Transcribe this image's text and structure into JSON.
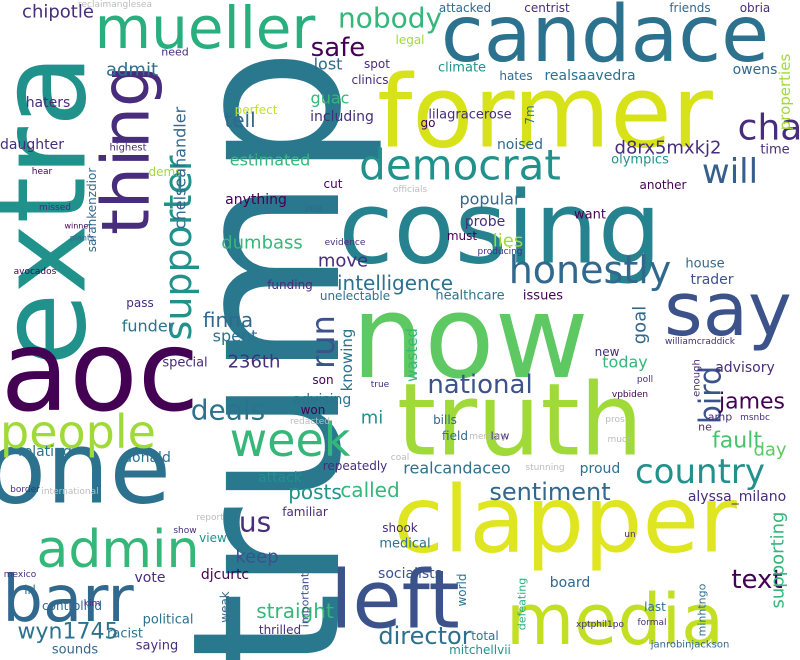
{
  "words": [
    "trump",
    "extra",
    "aoc",
    "one",
    "barr",
    "admin",
    "people",
    "cosing",
    "now",
    "truth",
    "clapper",
    "former",
    "candace",
    "mueller",
    "thing",
    "say",
    "left",
    "media",
    "week",
    "democrat",
    "honestly",
    "supporter",
    "country",
    "cha",
    "will",
    "nobody",
    "safe",
    "us",
    "deals",
    "national",
    "sentiment",
    "director",
    "wyn1745",
    "text",
    "intelligence",
    "run",
    "bird",
    "james",
    "fault",
    "straight",
    "posts",
    "called",
    "keep",
    "finna",
    "move",
    "lies",
    "popular",
    "tell",
    "admit",
    "chipotle",
    "lost",
    "guac",
    "including",
    "estimated",
    "anything",
    "dumbass",
    "funder",
    "spent",
    "236th",
    "special",
    "goal",
    "today",
    "d8rx5mxkj2",
    "realcandaceo",
    "mi",
    "advising",
    "wasted",
    "knowing",
    "alyssa_milano",
    "day",
    "supporting",
    "realsaavedra",
    "climate",
    "lilagracerose",
    "noised",
    "olympics",
    "time",
    "properties",
    "owens",
    "house",
    "trader",
    "advisory",
    "probe",
    "want",
    "must",
    "healthcare",
    "issues",
    "funding",
    "unelectable",
    "pass",
    "haters",
    "daughter",
    "relating",
    "donald",
    "attack",
    "repeatedly",
    "proud",
    "medical",
    "shook",
    "socialists",
    "vote",
    "djcurtc",
    "racist",
    "political",
    "saying",
    "sounds",
    "mitchellvii",
    "thrilled",
    "board",
    "last",
    "total",
    "world",
    "field",
    "law",
    "bills",
    "son",
    "won",
    "familiar",
    "view",
    "weak",
    "controlled",
    "irl",
    "important",
    "defeating",
    "minhtngo",
    "janrobinjackson",
    "friends",
    "centrist",
    "attacked",
    "obria",
    "legal",
    "spot",
    "hates",
    "go",
    "cut",
    "7m",
    "another",
    "new",
    "poll",
    "clinics",
    "perfect",
    "dems",
    "highest",
    "hear",
    "missed",
    "winner",
    "plants",
    "avocados",
    "jong",
    "evidence",
    "officials",
    "producing",
    "williamcraddick",
    "enough",
    "vpbiden",
    "msnbc",
    "much",
    "pros",
    "un",
    "stunning",
    "coal",
    "mercury",
    "true",
    "redacted",
    "border",
    "international",
    "mexico",
    "kim",
    "show",
    "report",
    "need",
    "sarahkenzdior",
    "chelseahandler",
    "ne",
    "amp",
    "xptphil1po",
    "formal",
    "reclaimanglesea"
  ]
}
